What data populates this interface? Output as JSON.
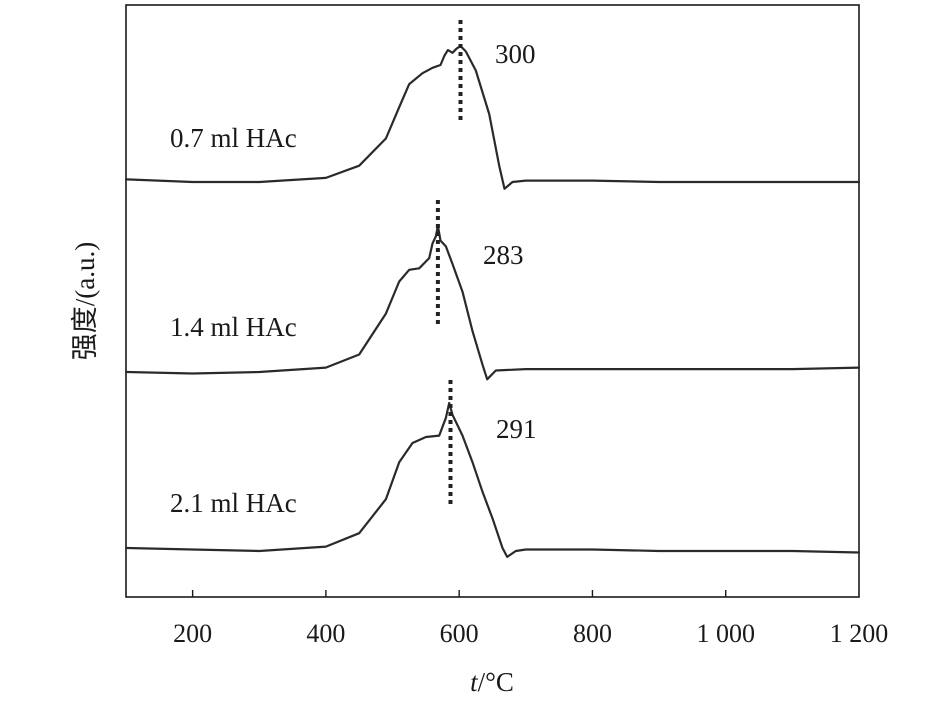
{
  "chart_data": {
    "type": "line",
    "xlabel_italic": "t",
    "xlabel_unit": "/°C",
    "ylabel": "强度/(a.u.)",
    "xlim": [
      100,
      1200
    ],
    "x_ticks": [
      {
        "value": 200,
        "label": "200"
      },
      {
        "value": 400,
        "label": "400"
      },
      {
        "value": 600,
        "label": "600"
      },
      {
        "value": 800,
        "label": "800"
      },
      {
        "value": 1000,
        "label": "1 000"
      },
      {
        "value": 1200,
        "label": "1 200"
      }
    ],
    "y_ticks_shown": false,
    "series": [
      {
        "name": "0.7 ml HAc",
        "peak_label": "300",
        "peak_x": 602,
        "points": [
          [
            100,
            0.02
          ],
          [
            200,
            0.0
          ],
          [
            300,
            0.0
          ],
          [
            400,
            0.03
          ],
          [
            450,
            0.12
          ],
          [
            490,
            0.32
          ],
          [
            510,
            0.55
          ],
          [
            525,
            0.72
          ],
          [
            545,
            0.8
          ],
          [
            560,
            0.84
          ],
          [
            572,
            0.86
          ],
          [
            578,
            0.93
          ],
          [
            583,
            0.97
          ],
          [
            590,
            0.95
          ],
          [
            596,
            0.98
          ],
          [
            602,
            1.0
          ],
          [
            610,
            0.96
          ],
          [
            625,
            0.82
          ],
          [
            645,
            0.5
          ],
          [
            660,
            0.12
          ],
          [
            668,
            -0.05
          ],
          [
            680,
            0.0
          ],
          [
            700,
            0.01
          ],
          [
            800,
            0.01
          ],
          [
            900,
            0.0
          ],
          [
            1000,
            0.0
          ],
          [
            1100,
            0.0
          ],
          [
            1200,
            0.0
          ]
        ]
      },
      {
        "name": "1.4 ml HAc",
        "peak_label": "283",
        "peak_x": 568,
        "points": [
          [
            100,
            0.0
          ],
          [
            200,
            -0.01
          ],
          [
            300,
            0.0
          ],
          [
            400,
            0.03
          ],
          [
            450,
            0.12
          ],
          [
            490,
            0.4
          ],
          [
            510,
            0.62
          ],
          [
            525,
            0.7
          ],
          [
            540,
            0.71
          ],
          [
            555,
            0.78
          ],
          [
            560,
            0.88
          ],
          [
            565,
            0.93
          ],
          [
            568,
            1.0
          ],
          [
            572,
            0.9
          ],
          [
            580,
            0.86
          ],
          [
            590,
            0.74
          ],
          [
            605,
            0.55
          ],
          [
            620,
            0.28
          ],
          [
            635,
            0.05
          ],
          [
            642,
            -0.05
          ],
          [
            655,
            0.01
          ],
          [
            700,
            0.02
          ],
          [
            800,
            0.02
          ],
          [
            900,
            0.02
          ],
          [
            1000,
            0.02
          ],
          [
            1100,
            0.02
          ],
          [
            1200,
            0.03
          ]
        ]
      },
      {
        "name": "2.1 ml HAc",
        "peak_label": "291",
        "peak_x": 587,
        "points": [
          [
            100,
            0.02
          ],
          [
            200,
            0.01
          ],
          [
            300,
            0.0
          ],
          [
            400,
            0.03
          ],
          [
            450,
            0.12
          ],
          [
            490,
            0.35
          ],
          [
            510,
            0.6
          ],
          [
            530,
            0.73
          ],
          [
            550,
            0.77
          ],
          [
            570,
            0.78
          ],
          [
            580,
            0.9
          ],
          [
            585,
            1.0
          ],
          [
            590,
            0.92
          ],
          [
            605,
            0.78
          ],
          [
            620,
            0.6
          ],
          [
            635,
            0.4
          ],
          [
            650,
            0.22
          ],
          [
            665,
            0.02
          ],
          [
            672,
            -0.04
          ],
          [
            685,
            0.0
          ],
          [
            700,
            0.01
          ],
          [
            800,
            0.01
          ],
          [
            900,
            0.0
          ],
          [
            1000,
            0.0
          ],
          [
            1100,
            0.0
          ],
          [
            1200,
            -0.01
          ]
        ]
      }
    ]
  }
}
